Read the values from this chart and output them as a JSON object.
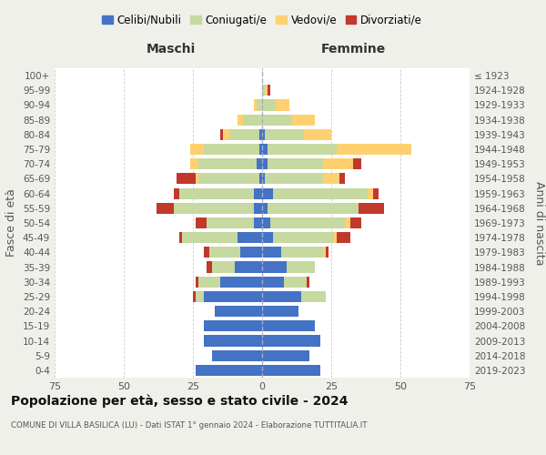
{
  "age_groups": [
    "0-4",
    "5-9",
    "10-14",
    "15-19",
    "20-24",
    "25-29",
    "30-34",
    "35-39",
    "40-44",
    "45-49",
    "50-54",
    "55-59",
    "60-64",
    "65-69",
    "70-74",
    "75-79",
    "80-84",
    "85-89",
    "90-94",
    "95-99",
    "100+"
  ],
  "birth_years": [
    "2019-2023",
    "2014-2018",
    "2009-2013",
    "2004-2008",
    "1999-2003",
    "1994-1998",
    "1989-1993",
    "1984-1988",
    "1979-1983",
    "1974-1978",
    "1969-1973",
    "1964-1968",
    "1959-1963",
    "1954-1958",
    "1949-1953",
    "1944-1948",
    "1939-1943",
    "1934-1938",
    "1929-1933",
    "1924-1928",
    "≤ 1923"
  ],
  "colors": {
    "celibi": "#4472C4",
    "coniugati": "#c5d9a0",
    "vedovi": "#FFD070",
    "divorziati": "#C0392B"
  },
  "males": {
    "celibi": [
      24,
      18,
      21,
      21,
      17,
      21,
      15,
      10,
      8,
      9,
      3,
      3,
      3,
      1,
      2,
      1,
      1,
      0,
      0,
      0,
      0
    ],
    "coniugati": [
      0,
      0,
      0,
      0,
      0,
      3,
      8,
      8,
      11,
      20,
      17,
      29,
      27,
      22,
      21,
      20,
      11,
      7,
      2,
      0,
      0
    ],
    "vedovi": [
      0,
      0,
      0,
      0,
      0,
      0,
      0,
      0,
      0,
      0,
      0,
      0,
      0,
      1,
      3,
      5,
      2,
      2,
      1,
      0,
      0
    ],
    "divorziati": [
      0,
      0,
      0,
      0,
      0,
      1,
      1,
      2,
      2,
      1,
      4,
      6,
      2,
      7,
      0,
      0,
      1,
      0,
      0,
      0,
      0
    ]
  },
  "females": {
    "celibi": [
      21,
      17,
      21,
      19,
      13,
      14,
      8,
      9,
      7,
      4,
      3,
      2,
      4,
      1,
      2,
      2,
      1,
      0,
      0,
      0,
      0
    ],
    "coniugati": [
      0,
      0,
      0,
      0,
      0,
      9,
      8,
      10,
      15,
      22,
      27,
      33,
      34,
      21,
      20,
      25,
      14,
      11,
      5,
      1,
      0
    ],
    "vedovi": [
      0,
      0,
      0,
      0,
      0,
      0,
      0,
      0,
      1,
      1,
      2,
      0,
      2,
      6,
      11,
      27,
      10,
      8,
      5,
      1,
      0
    ],
    "divorziati": [
      0,
      0,
      0,
      0,
      0,
      0,
      1,
      0,
      1,
      5,
      4,
      9,
      2,
      2,
      3,
      0,
      0,
      0,
      0,
      1,
      0
    ]
  },
  "xlim": 75,
  "title": "Popolazione per età, sesso e stato civile - 2024",
  "subtitle": "COMUNE DI VILLA BASILICA (LU) - Dati ISTAT 1° gennaio 2024 - Elaborazione TUTTITALIA.IT",
  "ylabel_left": "Fasce di età",
  "ylabel_right": "Anni di nascita",
  "xlabel_left": "Maschi",
  "xlabel_right": "Femmine",
  "legend_labels": [
    "Celibi/Nubili",
    "Coniugati/e",
    "Vedovi/e",
    "Divorziati/e"
  ],
  "bg_color": "#f0f0eb",
  "plot_bg": "#ffffff",
  "grid_color": "#cccccc",
  "text_color": "#555555",
  "title_color": "#111111"
}
